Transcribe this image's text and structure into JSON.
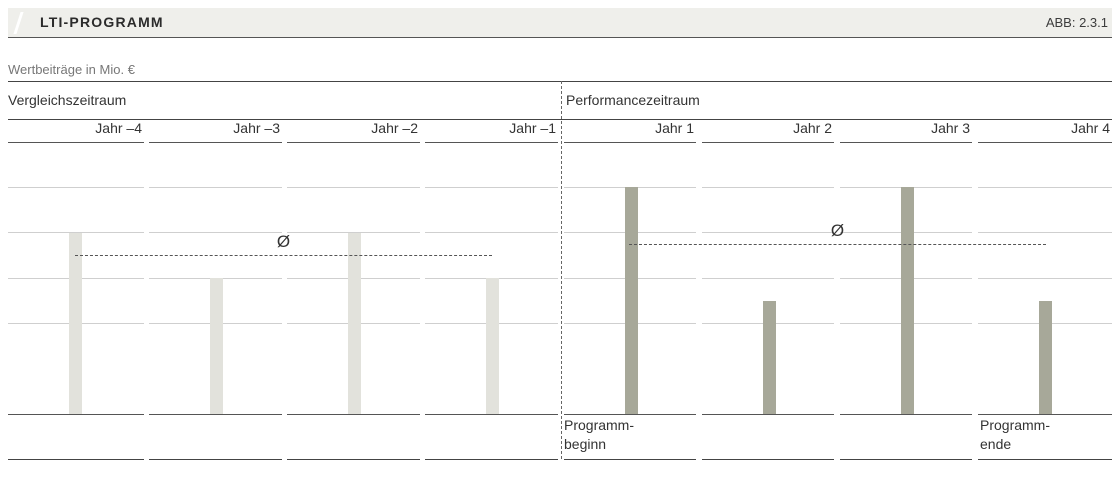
{
  "header": {
    "title": "LTI-PROGRAMM",
    "figure_id": "ABB: 2.3.1"
  },
  "subtitle": "Wertbeiträge in Mio. €",
  "sections": {
    "left": "Vergleichszeitraum",
    "right": "Performancezeitraum"
  },
  "notes": {
    "start_line1": "Programm-",
    "start_line2": "beginn",
    "end_line1": "Programm-",
    "end_line2": "ende"
  },
  "colors": {
    "comparison_bar": "#e2e2dc",
    "performance_bar": "#a7a899",
    "grid": "#cfcfcf",
    "header_bg": "#efefeb"
  },
  "chart_data": {
    "type": "bar",
    "categories": [
      "Jahr –4",
      "Jahr –3",
      "Jahr –2",
      "Jahr –1",
      "Jahr 1",
      "Jahr 2",
      "Jahr 3",
      "Jahr 4"
    ],
    "series": [
      {
        "values": [
          4,
          3,
          4,
          3,
          null,
          null,
          null,
          null
        ]
      },
      {
        "values": [
          null,
          null,
          null,
          null,
          5,
          2.5,
          5,
          2.5
        ]
      }
    ],
    "averages": [
      {
        "symbol": "Ø",
        "value": 3.5,
        "period": "Vergleichszeitraum"
      },
      {
        "symbol": "Ø",
        "value": 3.75,
        "period": "Performancezeitraum"
      }
    ],
    "ylim": [
      0,
      6
    ],
    "grid": true
  }
}
